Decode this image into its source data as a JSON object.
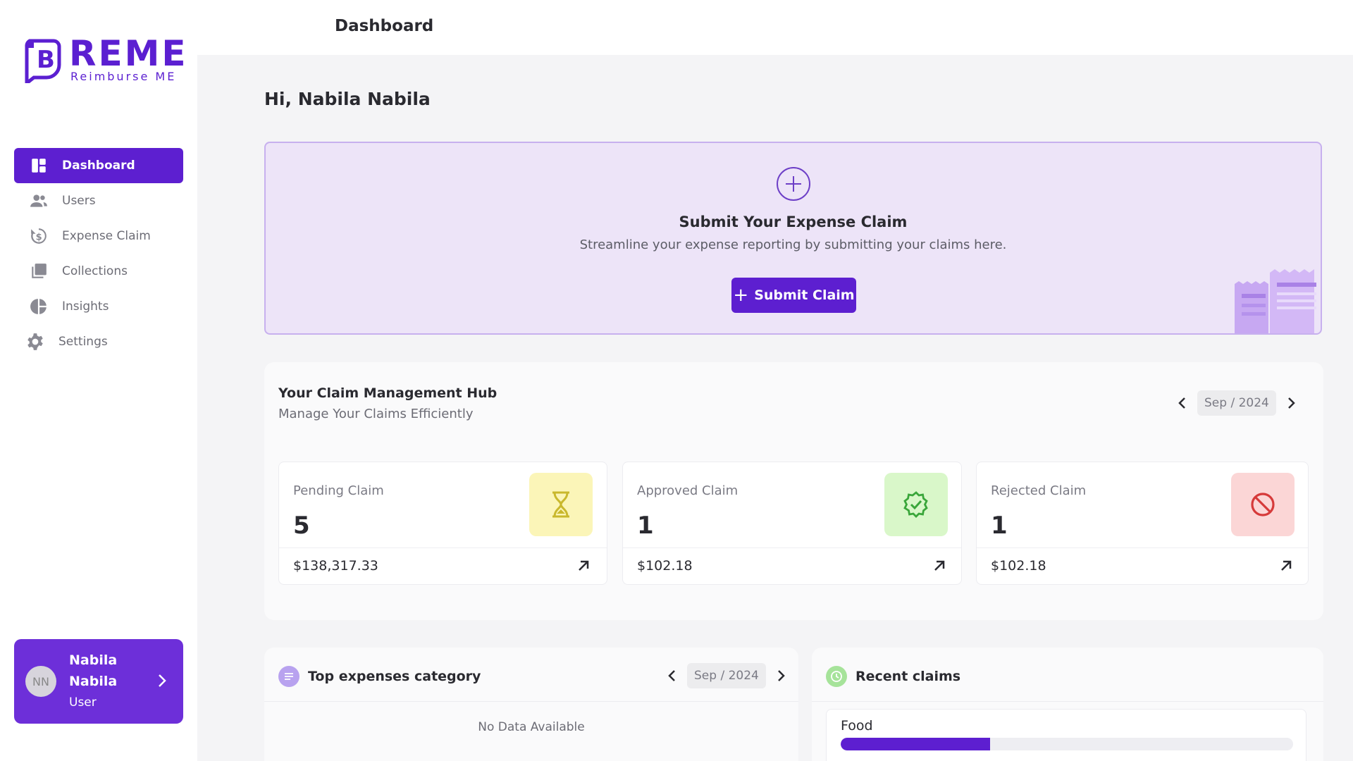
{
  "brand": {
    "name": "REME",
    "tagline": "Reimburse ME",
    "color": "#5b1fd1"
  },
  "header": {
    "title": "Dashboard"
  },
  "sidebar": {
    "items": [
      {
        "label": "Dashboard",
        "icon": "dashboard-icon",
        "active": true
      },
      {
        "label": "Users",
        "icon": "users-icon",
        "active": false
      },
      {
        "label": "Expense Claim",
        "icon": "expense-claim-icon",
        "active": false
      },
      {
        "label": "Collections",
        "icon": "collections-icon",
        "active": false
      },
      {
        "label": "Insights",
        "icon": "pie-chart-icon",
        "active": false
      },
      {
        "label": "Settings",
        "icon": "gear-icon",
        "active": false
      }
    ]
  },
  "user": {
    "initials": "NN",
    "first_name": "Nabila",
    "last_name": "Nabila",
    "role": "User"
  },
  "greeting": "Hi, Nabila Nabila",
  "banner": {
    "title": "Submit Your Expense Claim",
    "subtitle": "Streamline your expense reporting by submitting your claims here.",
    "button_label": "Submit Claim"
  },
  "hub": {
    "title": "Your Claim Management Hub",
    "subtitle": "Manage Your Claims Efficiently",
    "period": "Sep / 2024",
    "cards": [
      {
        "label": "Pending Claim",
        "count": "5",
        "amount": "$138,317.33",
        "icon": "hourglass-icon",
        "icon_bg": "#fbf5b8"
      },
      {
        "label": "Approved Claim",
        "count": "1",
        "amount": "$102.18",
        "icon": "verified-badge-icon",
        "icon_bg": "#d9f7c9"
      },
      {
        "label": "Rejected Claim",
        "count": "1",
        "amount": "$102.18",
        "icon": "block-icon",
        "icon_bg": "#fbd6d6"
      }
    ]
  },
  "top_expenses": {
    "title": "Top expenses category",
    "period": "Sep / 2024",
    "empty_text": "No Data Available"
  },
  "recent_claims": {
    "title": "Recent claims",
    "items": [
      {
        "category": "Food",
        "progress": 0.33
      }
    ]
  },
  "colors": {
    "accent": "#5d1fd0",
    "banner_bg": "#ede4f8"
  }
}
